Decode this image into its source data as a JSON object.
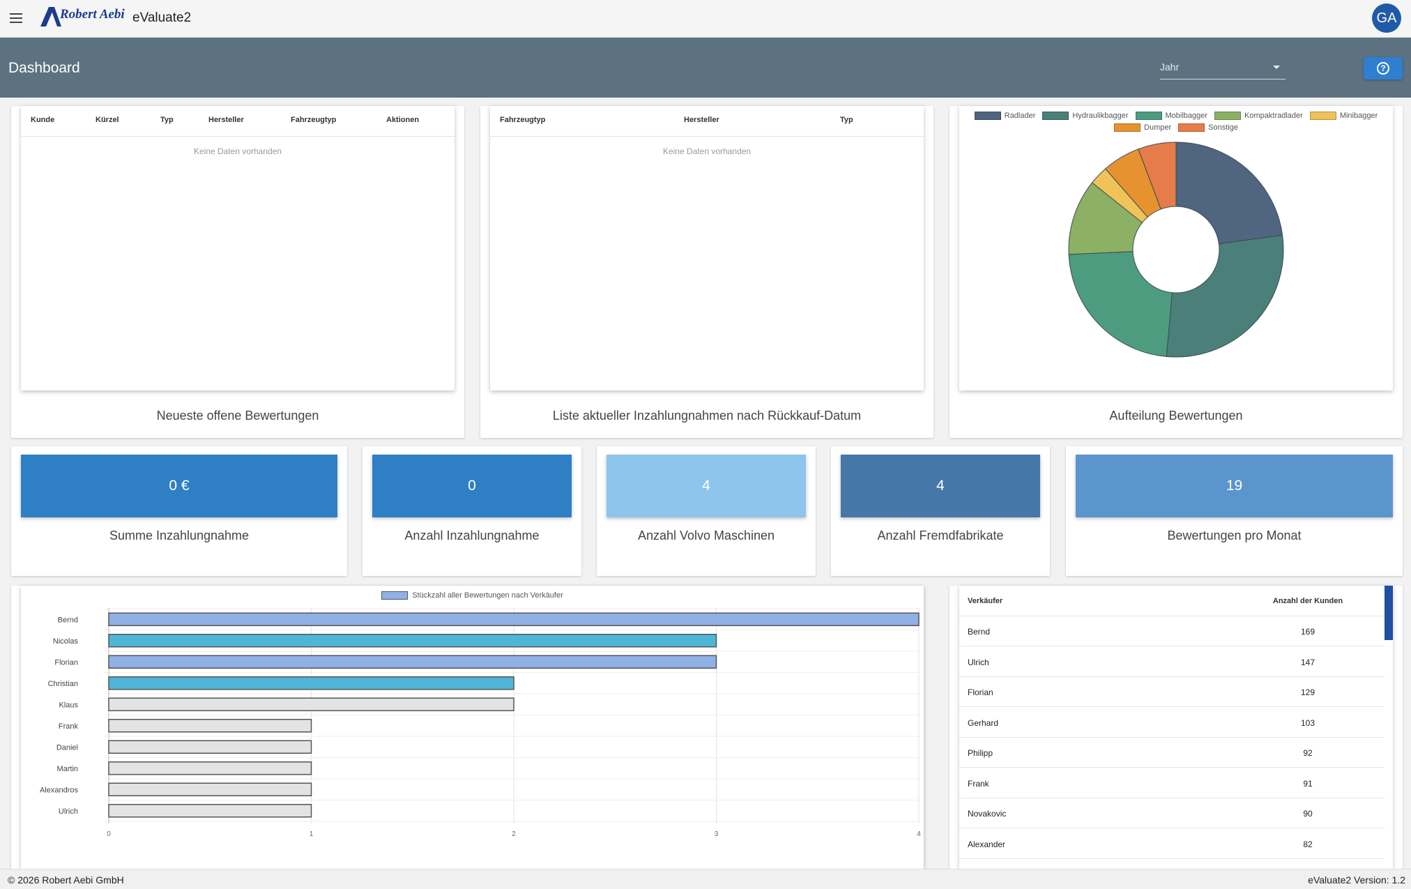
{
  "appbar": {
    "logo_text": "Robert Aebi",
    "app_name": "eValuate2",
    "avatar_initials": "GA"
  },
  "header": {
    "title": "Dashboard",
    "year_label": "Jahr"
  },
  "colors": {
    "band": "#5d7281",
    "accent": "#2f7fd1",
    "avatar": "#1f5aa6"
  },
  "cards": {
    "open_evaluations": {
      "caption": "Neueste offene Bewertungen",
      "columns": [
        "Kunde",
        "Kürzel",
        "Typ",
        "Hersteller",
        "Fahrzeugtyp",
        "Aktionen"
      ],
      "empty_text": "Keine Daten vorhanden"
    },
    "trade_ins": {
      "caption": "Liste aktueller Inzahlungnahmen nach Rückkauf-Datum",
      "columns": [
        "Fahrzeugtyp",
        "Hersteller",
        "Typ"
      ],
      "empty_text": "Keine Daten vorhanden"
    },
    "distribution": {
      "caption": "Aufteilung Bewertungen"
    }
  },
  "kpis": [
    {
      "value": "0 €",
      "label": "Summe Inzahlungnahme",
      "color": "#2f7fc5"
    },
    {
      "value": "0",
      "label": "Anzahl Inzahlungnahme",
      "color": "#2f7fc5"
    },
    {
      "value": "4",
      "label": "Anzahl Volvo Maschinen",
      "color": "#8ec5ec"
    },
    {
      "value": "4",
      "label": "Anzahl Fremdfabrikate",
      "color": "#4577a9"
    },
    {
      "value": "19",
      "label": "Bewertungen pro Monat",
      "color": "#5b95cd"
    }
  ],
  "chart_data": [
    {
      "type": "pie",
      "variant": "donut",
      "categories": [
        "Radlader",
        "Hydraulikbagger",
        "Mobilbagger",
        "Kompaktradlader",
        "Minibagger",
        "Dumper",
        "Sonstige"
      ],
      "values": [
        4,
        5,
        4,
        2,
        0.5,
        1,
        1
      ],
      "colors": [
        "#4f6580",
        "#4a7f7a",
        "#4e9c80",
        "#8cb064",
        "#efc25a",
        "#e6932f",
        "#e67c4a"
      ],
      "legend": "top"
    },
    {
      "type": "bar",
      "orientation": "horizontal",
      "legend_label": "Stückzahl aller Bewertungen nach Verkäufer",
      "categories": [
        "Bernd",
        "Nicolas",
        "Florian",
        "Christian",
        "Klaus",
        "Frank",
        "Daniel",
        "Martin",
        "Alexandros",
        "Ulrich"
      ],
      "values": [
        4,
        3,
        3,
        2,
        2,
        1,
        1,
        1,
        1,
        1
      ],
      "colors": [
        "#8fb1e6",
        "#4fb6d8",
        "#8fb1e6",
        "#4fb6d8",
        "#e3e3e3",
        "#e3e3e3",
        "#e3e3e3",
        "#e3e3e3",
        "#e3e3e3",
        "#e3e3e3"
      ],
      "xlim": [
        0,
        4
      ],
      "xticks": [
        "0",
        "1",
        "2",
        "3",
        "4"
      ],
      "grid": true
    }
  ],
  "sellers": {
    "columns": [
      "Verkäufer",
      "Anzahl der Kunden"
    ],
    "rows": [
      {
        "name": "Bernd",
        "count": "169"
      },
      {
        "name": "Ulrich",
        "count": "147"
      },
      {
        "name": "Florian",
        "count": "129"
      },
      {
        "name": "Gerhard",
        "count": "103"
      },
      {
        "name": "Philipp",
        "count": "92"
      },
      {
        "name": "Frank",
        "count": "91"
      },
      {
        "name": "Novakovic",
        "count": "90"
      },
      {
        "name": "Alexander",
        "count": "82"
      }
    ]
  },
  "footer": {
    "copyright": "© 2026 Robert Aebi GmbH",
    "version": "eValuate2 Version: 1.2"
  }
}
